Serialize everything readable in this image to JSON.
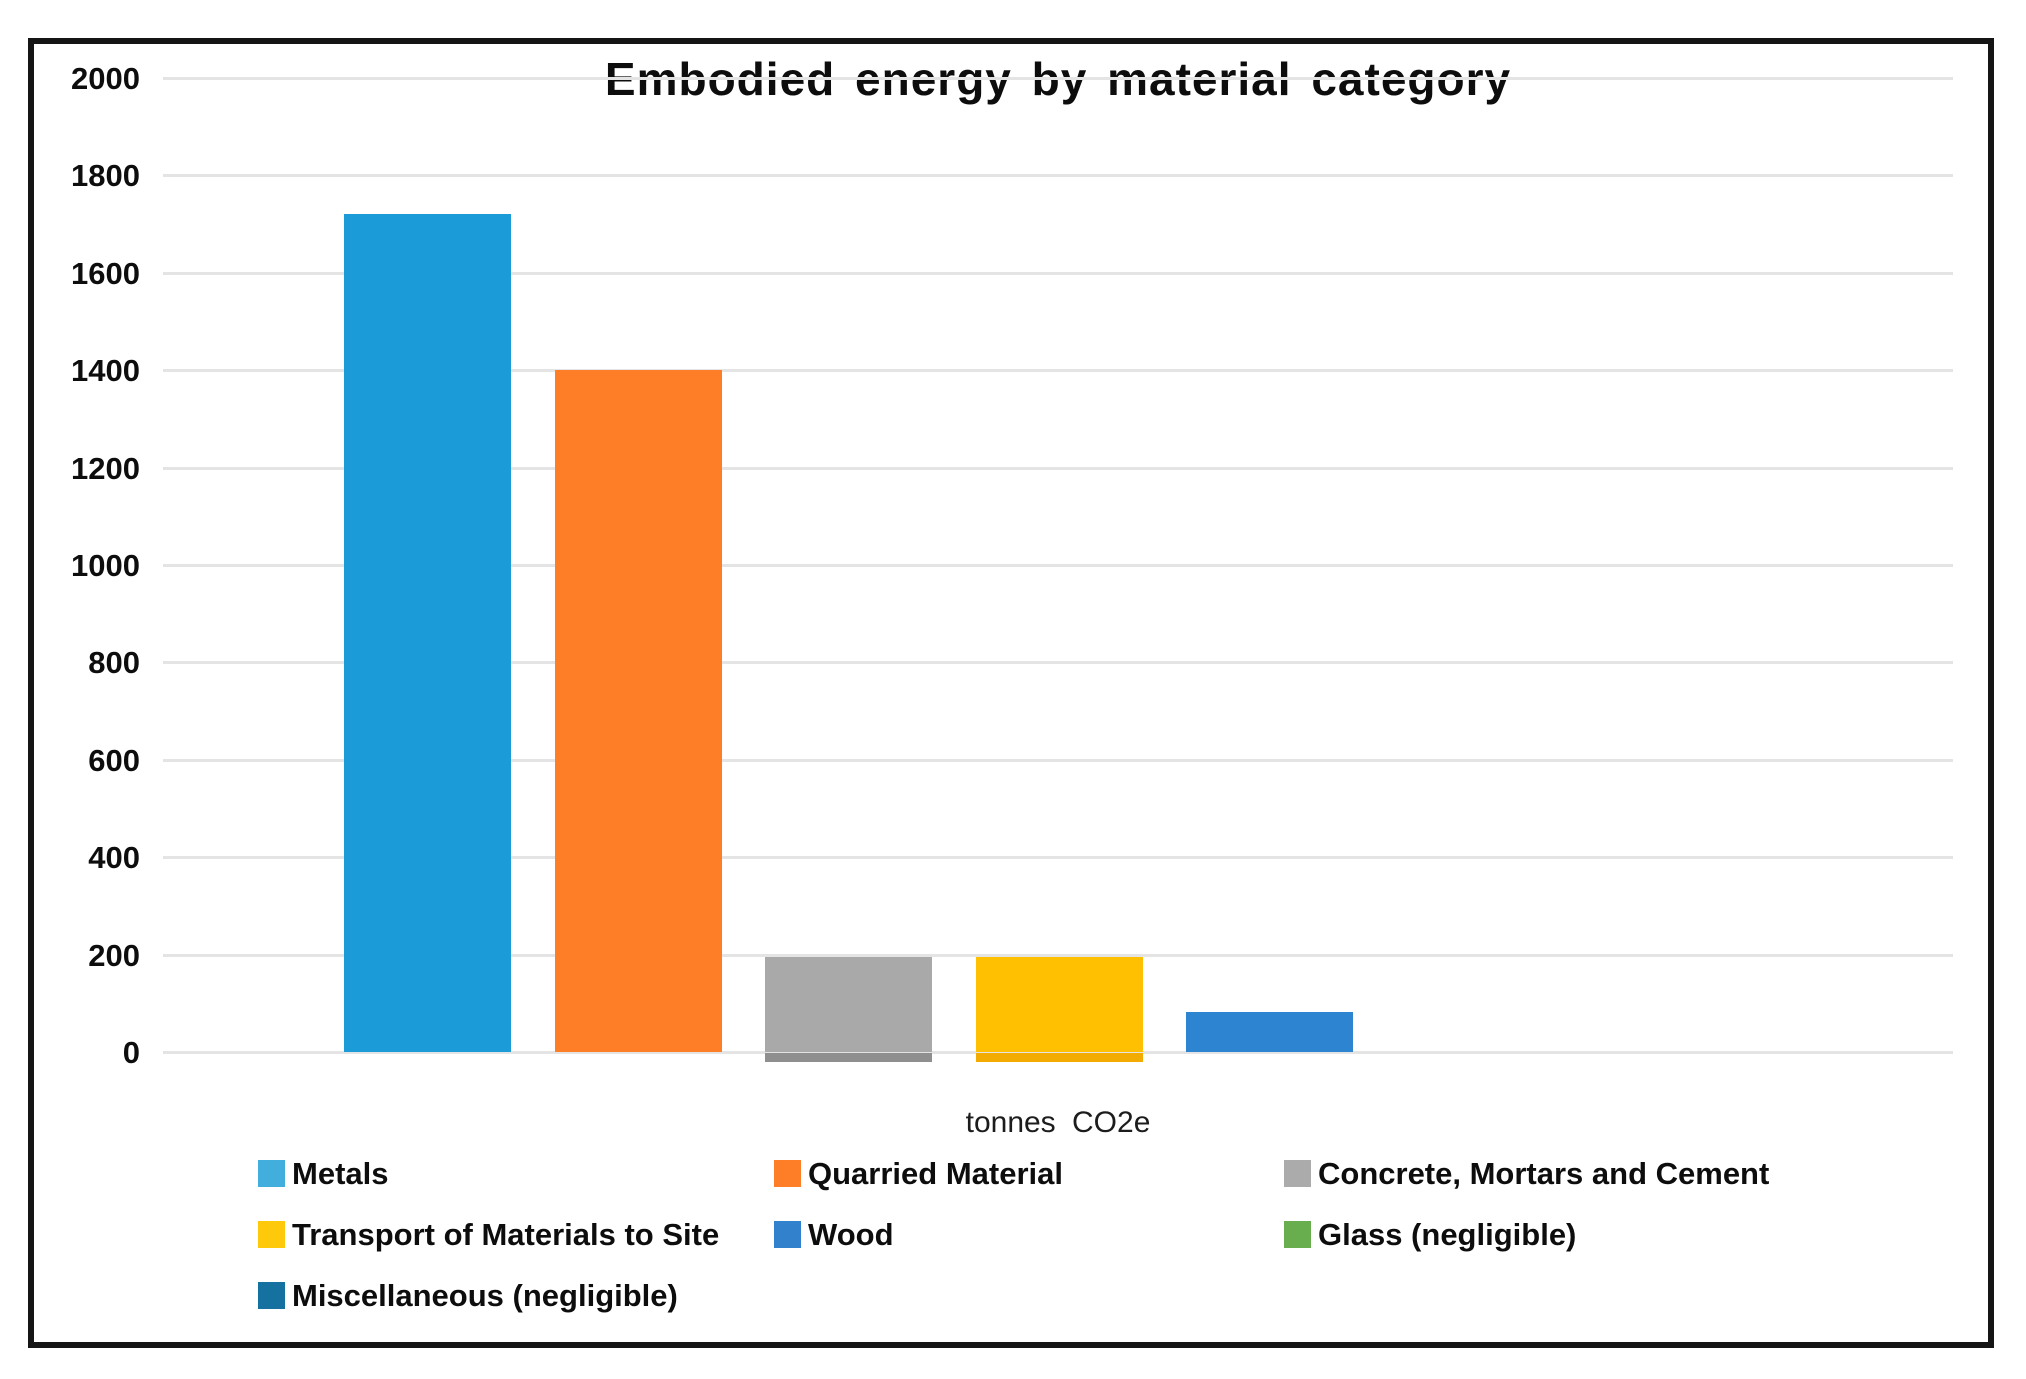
{
  "chart_data": {
    "type": "bar",
    "title": "Embodied energy by material category",
    "xlabel": "tonnes CO2e",
    "ylabel": "",
    "ylim": [
      0,
      2000
    ],
    "ytick_step": 200,
    "yticks": [
      2000,
      1800,
      1600,
      1400,
      1200,
      1000,
      800,
      600,
      400,
      200,
      0
    ],
    "categories": [
      "tonnes CO2e"
    ],
    "grid": true,
    "legend_position": "bottom",
    "series": [
      {
        "name": "Metals",
        "value": 1720,
        "color": "#1b9cd8",
        "legend_color": "#41aede"
      },
      {
        "name": "Quarried Material",
        "value": 1400,
        "color": "#fd7e26",
        "legend_color": "#fd7e26"
      },
      {
        "name": "Concrete, Mortars and Cement",
        "value": 195,
        "color": "#a9a9a9",
        "legend_color": "#ababab",
        "base_strip_color": "#8f8f8f"
      },
      {
        "name": "Transport of Materials to Site",
        "value": 195,
        "color": "#ffc001",
        "legend_color": "#fdc90a",
        "base_strip_color": "#f2ab00"
      },
      {
        "name": "Wood",
        "value": 82,
        "color": "#2d85d2",
        "legend_color": "#3181cd"
      },
      {
        "name": "Glass (negligible)",
        "value": 0,
        "color": "#69ae4e",
        "legend_color": "#69ae4e"
      },
      {
        "name": "Miscellaneous (negligible)",
        "value": 0,
        "color": "#15719f",
        "legend_color": "#15719f"
      }
    ]
  }
}
